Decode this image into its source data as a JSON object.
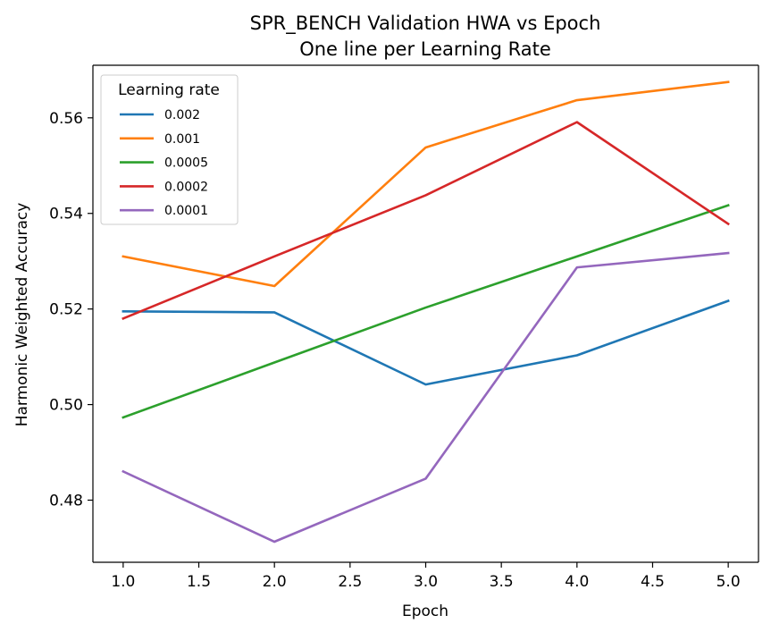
{
  "chart_data": {
    "type": "line",
    "title": [
      "SPR_BENCH Validation HWA vs Epoch",
      "One line per Learning Rate"
    ],
    "xlabel": "Epoch",
    "ylabel": "Harmonic Weighted Accuracy",
    "x": [
      1,
      2,
      3,
      4,
      5
    ],
    "xlim": [
      0.8,
      5.2
    ],
    "ylim": [
      0.467,
      0.571
    ],
    "xticks": [
      1.0,
      1.5,
      2.0,
      2.5,
      3.0,
      3.5,
      4.0,
      4.5,
      5.0
    ],
    "xtick_labels": [
      "1.0",
      "1.5",
      "2.0",
      "2.5",
      "3.0",
      "3.5",
      "4.0",
      "4.5",
      "5.0"
    ],
    "yticks": [
      0.48,
      0.5,
      0.52,
      0.54,
      0.56
    ],
    "ytick_labels": [
      "0.48",
      "0.50",
      "0.52",
      "0.54",
      "0.56"
    ],
    "grid": false,
    "legend": {
      "title": "Learning rate",
      "position": "top-left"
    },
    "series": [
      {
        "name": "0.002",
        "color": "#1f77b4",
        "values": [
          0.5195,
          0.5193,
          0.5042,
          0.5103,
          0.5217
        ]
      },
      {
        "name": "0.001",
        "color": "#ff7f0e",
        "values": [
          0.531,
          0.5248,
          0.5538,
          0.5637,
          0.5675
        ]
      },
      {
        "name": "0.0005",
        "color": "#2ca02c",
        "values": [
          0.4973,
          0.5088,
          0.5203,
          0.531,
          0.5417
        ]
      },
      {
        "name": "0.0002",
        "color": "#d62728",
        "values": [
          0.518,
          0.531,
          0.5438,
          0.5591,
          0.5378
        ]
      },
      {
        "name": "0.0001",
        "color": "#9467bd",
        "values": [
          0.486,
          0.4713,
          0.4845,
          0.5287,
          0.5317
        ]
      }
    ]
  }
}
